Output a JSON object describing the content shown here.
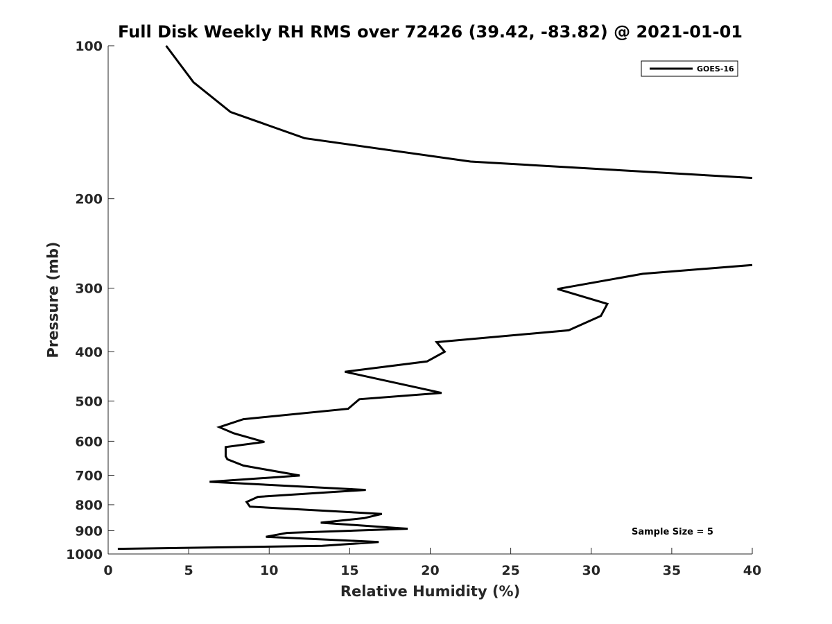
{
  "chart_data": {
    "type": "line",
    "title": "Full Disk Weekly RH RMS over 72426 (39.42, -83.82) @ 2021-01-01",
    "xlabel": "Relative Humidity (%)",
    "ylabel": "Pressure (mb)",
    "xlim": [
      0,
      40
    ],
    "ylim": [
      100,
      1000
    ],
    "y_scale": "log",
    "y_reversed": true,
    "x_ticks": [
      "0",
      "5",
      "10",
      "15",
      "20",
      "25",
      "30",
      "35",
      "40"
    ],
    "y_ticks": [
      "100",
      "200",
      "300",
      "400",
      "500",
      "600",
      "700",
      "800",
      "900",
      "1000"
    ],
    "grid": false,
    "legend_position": "top-right",
    "annotation": "Sample Size = 5",
    "series": [
      {
        "name": "GOES-16",
        "color": "#000000",
        "segments": [
          [
            [
              3.6,
              100
            ],
            [
              5.3,
              118
            ],
            [
              7.6,
              135
            ],
            [
              12.2,
              152
            ],
            [
              22.5,
              169
            ],
            [
              40,
              182
            ]
          ],
          [
            [
              40,
              270
            ],
            [
              33.2,
              281
            ],
            [
              27.9,
              301
            ],
            [
              31.0,
              322
            ],
            [
              30.6,
              340
            ],
            [
              28.6,
              363
            ],
            [
              20.4,
              383
            ],
            [
              20.9,
              400
            ],
            [
              19.8,
              418
            ],
            [
              14.7,
              438
            ],
            [
              20.7,
              482
            ],
            [
              15.6,
              496
            ],
            [
              14.9,
              518
            ],
            [
              8.4,
              543
            ],
            [
              6.9,
              563
            ],
            [
              7.8,
              579
            ],
            [
              9.7,
              602
            ],
            [
              7.3,
              616
            ],
            [
              7.3,
              642
            ],
            [
              7.4,
              651
            ],
            [
              8.4,
              670
            ],
            [
              11.9,
              701
            ],
            [
              6.3,
              721
            ],
            [
              16.0,
              748
            ],
            [
              9.3,
              772
            ],
            [
              8.6,
              790
            ],
            [
              8.8,
              807
            ],
            [
              17.0,
              834
            ],
            [
              15.9,
              850
            ],
            [
              13.2,
              868
            ],
            [
              18.6,
              892
            ],
            [
              11.1,
              909
            ],
            [
              9.8,
              925
            ],
            [
              16.8,
              947
            ],
            [
              13.3,
              964
            ],
            [
              0.6,
              977
            ]
          ]
        ]
      }
    ]
  }
}
